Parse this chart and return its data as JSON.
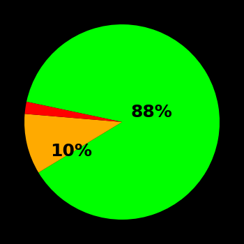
{
  "slices": [
    88,
    10,
    2
  ],
  "colors": [
    "#00ff00",
    "#ffaa00",
    "#ff0000"
  ],
  "labels": [
    "88%",
    "10%",
    ""
  ],
  "background_color": "#000000",
  "startangle": 168,
  "figsize": [
    3.5,
    3.5
  ],
  "dpi": 100,
  "label_fontsize": 18,
  "label_fontweight": "bold"
}
